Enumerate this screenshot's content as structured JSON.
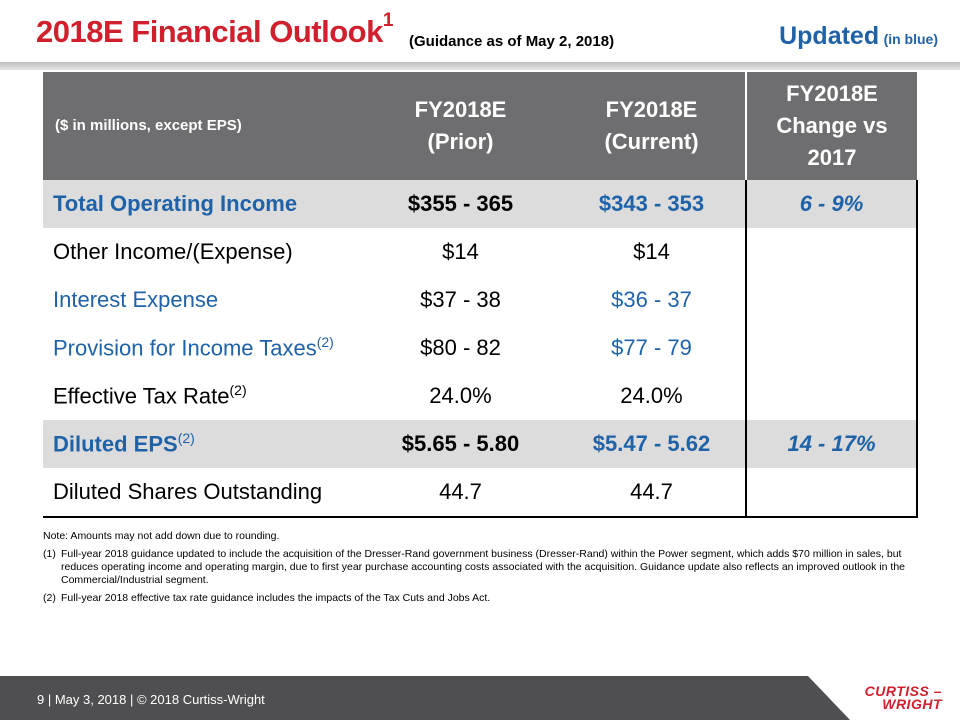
{
  "title": {
    "main": "2018E Financial Outlook",
    "superscript": "1",
    "subtitle": "(Guidance as of May 2, 2018)",
    "updated": "Updated",
    "updated_note": "(in blue)"
  },
  "table": {
    "headers": {
      "label": "($ in millions, except EPS)",
      "prior_line1": "FY2018E",
      "prior_line2": "(Prior)",
      "current_line1": "FY2018E",
      "current_line2": "(Current)",
      "change_line1": "FY2018E",
      "change_line2": "Change vs",
      "change_line3": "2017"
    },
    "rows": [
      {
        "label": "Total Operating Income",
        "sup": "",
        "prior": "$355 - 365",
        "current": "$343 - 353",
        "change": "6 - 9%"
      },
      {
        "label": "Other Income/(Expense)",
        "sup": "",
        "prior": "$14",
        "current": "$14",
        "change": ""
      },
      {
        "label": "Interest Expense",
        "sup": "",
        "prior": "$37 - 38",
        "current": "$36 - 37",
        "change": ""
      },
      {
        "label": "Provision for Income Taxes",
        "sup": "(2)",
        "prior": "$80 - 82",
        "current": "$77 - 79",
        "change": ""
      },
      {
        "label": "Effective Tax Rate",
        "sup": "(2)",
        "prior": "24.0%",
        "current": "24.0%",
        "change": ""
      },
      {
        "label": "Diluted EPS",
        "sup": "(2)",
        "prior": "$5.65 - 5.80",
        "current": "$5.47 - 5.62",
        "change": "14 - 17%"
      },
      {
        "label": "Diluted Shares Outstanding",
        "sup": "",
        "prior": "44.7",
        "current": "44.7",
        "change": ""
      }
    ]
  },
  "notes": {
    "note": "Note: Amounts may not add down due to rounding.",
    "fn1_num": "(1)",
    "fn1_text": "Full-year 2018 guidance updated to include the acquisition of the Dresser-Rand government business (Dresser-Rand) within the Power segment, which adds $70 million in sales, but reduces operating income and operating margin, due to first year purchase accounting costs associated with the acquisition. Guidance update also reflects an improved outlook in the Commercial/Industrial segment.",
    "fn2_num": "(2)",
    "fn2_text": "Full-year 2018 effective tax rate guidance includes the impacts of the Tax Cuts and Jobs Act."
  },
  "footer": {
    "text": "9  | May 3, 2018  |  © 2018 Curtiss-Wright",
    "logo_line1": "CURTISS –",
    "logo_line2": "WRIGHT"
  },
  "colors": {
    "title_red": "#d0202e",
    "accent_blue": "#1f62a8",
    "header_gray": "#6e6e70",
    "shade_gray": "#dcdcdc",
    "footer_gray": "#4f4f51"
  }
}
